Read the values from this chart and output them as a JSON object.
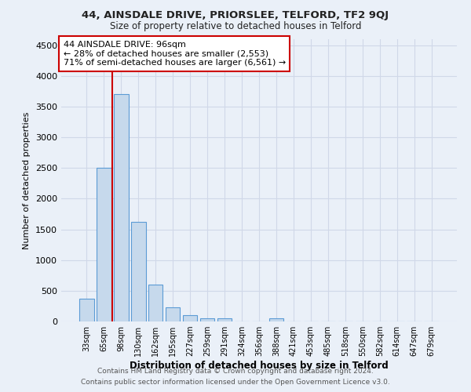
{
  "title1": "44, AINSDALE DRIVE, PRIORSLEE, TELFORD, TF2 9QJ",
  "title2": "Size of property relative to detached houses in Telford",
  "xlabel": "Distribution of detached houses by size in Telford",
  "ylabel": "Number of detached properties",
  "footnote1": "Contains HM Land Registry data © Crown copyright and database right 2024.",
  "footnote2": "Contains public sector information licensed under the Open Government Licence v3.0.",
  "bar_labels": [
    "33sqm",
    "65sqm",
    "98sqm",
    "130sqm",
    "162sqm",
    "195sqm",
    "227sqm",
    "259sqm",
    "291sqm",
    "324sqm",
    "356sqm",
    "388sqm",
    "421sqm",
    "453sqm",
    "485sqm",
    "518sqm",
    "550sqm",
    "582sqm",
    "614sqm",
    "647sqm",
    "679sqm"
  ],
  "bar_values": [
    375,
    2500,
    3700,
    1625,
    600,
    235,
    100,
    50,
    50,
    0,
    0,
    50,
    0,
    0,
    0,
    0,
    0,
    0,
    0,
    0,
    0
  ],
  "bar_color": "#c6d9ec",
  "bar_edge_color": "#5b9bd5",
  "grid_color": "#d0d8e8",
  "background_color": "#eaf0f8",
  "annotation_title": "44 AINSDALE DRIVE: 96sqm",
  "annotation_line1": "← 28% of detached houses are smaller (2,553)",
  "annotation_line2": "71% of semi-detached houses are larger (6,561) →",
  "annotation_box_color": "#ffffff",
  "annotation_box_edge_color": "#cc0000",
  "vline_color": "#cc0000",
  "vline_x_index": 2,
  "ylim": [
    0,
    4600
  ],
  "yticks": [
    0,
    500,
    1000,
    1500,
    2000,
    2500,
    3000,
    3500,
    4000,
    4500
  ]
}
